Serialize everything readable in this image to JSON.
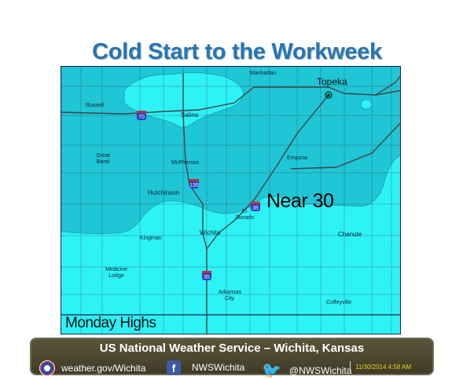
{
  "title": "Cold Start to the Workweek",
  "map": {
    "colors": {
      "colder_zone": "#1fc6d6",
      "near_30_zone": "#2df2f6"
    },
    "annotation": "Near 30",
    "panel_label": "Monday Highs",
    "capital": "Topeka",
    "cities": [
      "Manhattan",
      "Russell",
      "Salina",
      "Great Bend",
      "McPherson",
      "Emporia",
      "Hutchinson",
      "El Dorado",
      "Kingman",
      "Wichita",
      "Chanute",
      "Medicine Lodge",
      "Arkansas City",
      "Coffeyville"
    ],
    "shields": [
      "70",
      "135",
      "35",
      "35"
    ]
  },
  "footer": {
    "title": "US National Weather Service – Wichita, Kansas",
    "website": "weather.gov/Wichita",
    "facebook": "NWSWichita",
    "twitter": "@NWSWichita",
    "timestamp": "11/30/2014 4:58 AM"
  }
}
